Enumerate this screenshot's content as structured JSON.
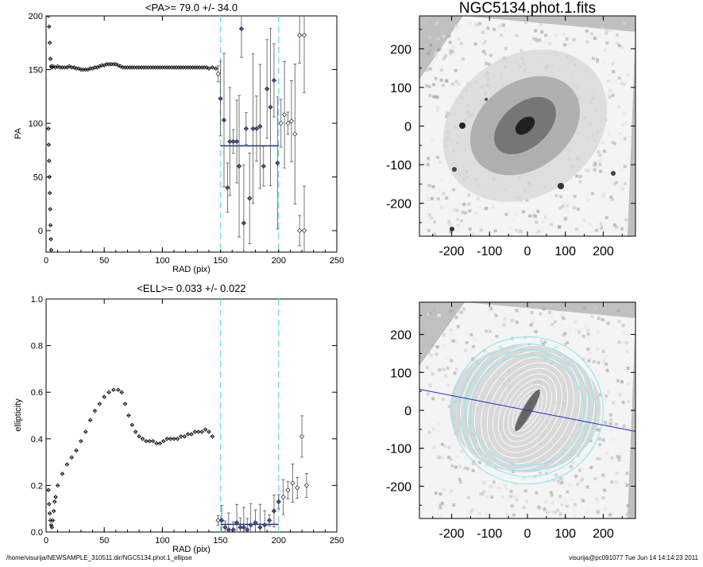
{
  "footer": {
    "path": "/home/visurija/NEWSAMPLE_310511.dir/NGC5134.phot.1_ellipse",
    "user_time": "visurija@pc091077  Tue Jun 14 14:14:23 2011"
  },
  "colors": {
    "inner": "#000000",
    "fit_region": "#4a4ab0",
    "fit_line": "#1a2aa8",
    "guide": "#7fdde8",
    "image_bg": "#c0c0c0",
    "ellipse": "#8fe8f0",
    "pa_line": "#2030c0"
  },
  "chart_data": [
    {
      "type": "scatter",
      "title": "<PA>=  79.0 +/-  34.0",
      "xlabel": "RAD (pix)",
      "ylabel": "PA",
      "xlim": [
        0,
        250
      ],
      "ylim": [
        -20,
        200
      ],
      "xticks": [
        "0",
        "50",
        "100",
        "150",
        "200",
        "250"
      ],
      "yticks": [
        "0",
        "50",
        "100",
        "150",
        "200"
      ],
      "fit_window": [
        150,
        200
      ],
      "mean_value": 79.0,
      "series": [
        {
          "points": [
            [
              2.0,
              200.0
            ],
            [
              2.6,
              190.0
            ],
            [
              3.2,
              175.0
            ],
            [
              3.8,
              160.0
            ],
            [
              4.4,
              153.0
            ],
            [
              5,
              152
            ],
            [
              6,
              153
            ],
            [
              8,
              152
            ],
            [
              10,
              153
            ],
            [
              12,
              152
            ],
            [
              14,
              152
            ],
            [
              16,
              152
            ],
            [
              18,
              152
            ],
            [
              20,
              153
            ],
            [
              22,
              152
            ],
            [
              24,
              152
            ],
            [
              26,
              151
            ],
            [
              28,
              151
            ],
            [
              30,
              150
            ],
            [
              32,
              150
            ],
            [
              34,
              150
            ],
            [
              36,
              150
            ],
            [
              38,
              151
            ],
            [
              40,
              151
            ],
            [
              42,
              152
            ],
            [
              44,
              152
            ],
            [
              46,
              153
            ],
            [
              48,
              154
            ],
            [
              50,
              154
            ],
            [
              52,
              155
            ],
            [
              54,
              155
            ],
            [
              56,
              155
            ],
            [
              58,
              155
            ],
            [
              60,
              155
            ],
            [
              62,
              154
            ],
            [
              64,
              153
            ],
            [
              66,
              152
            ],
            [
              68,
              152
            ],
            [
              70,
              152
            ],
            [
              72,
              152
            ],
            [
              74,
              152
            ],
            [
              76,
              152
            ],
            [
              78,
              152
            ],
            [
              80,
              152
            ],
            [
              82,
              152
            ],
            [
              84,
              152
            ],
            [
              86,
              152
            ],
            [
              88,
              152
            ],
            [
              90,
              152
            ],
            [
              92,
              152
            ],
            [
              94,
              152
            ],
            [
              96,
              152
            ],
            [
              98,
              152
            ],
            [
              100,
              152
            ],
            [
              102,
              152
            ],
            [
              104,
              152
            ],
            [
              106,
              152
            ],
            [
              108,
              152
            ],
            [
              110,
              152
            ],
            [
              112,
              152
            ],
            [
              114,
              152
            ],
            [
              116,
              152
            ],
            [
              118,
              152
            ],
            [
              120,
              152
            ],
            [
              122,
              152
            ],
            [
              124,
              152
            ],
            [
              126,
              152
            ],
            [
              128,
              152
            ],
            [
              130,
              152
            ],
            [
              132,
              152
            ],
            [
              134,
              152
            ],
            [
              136,
              152
            ],
            [
              138,
              152
            ],
            [
              140,
              151
            ],
            [
              143,
              152
            ],
            [
              146,
              151
            ],
            [
              2.0,
              95.0
            ],
            [
              2.3,
              80.0
            ],
            [
              2.6,
              65.0
            ],
            [
              2.9,
              50.0
            ],
            [
              3.2,
              35.0
            ],
            [
              3.5,
              20.0
            ],
            [
              3.8,
              5.0
            ],
            [
              4.1,
              -8.0
            ],
            [
              4.4,
              -18.0
            ]
          ]
        },
        {
          "points": [
            [
              148,
              146
            ],
            [
              150,
              123
            ],
            [
              153,
              103
            ],
            [
              156,
              40
            ],
            [
              158,
              83
            ],
            [
              161,
              83
            ],
            [
              164,
              83
            ],
            [
              166,
              60
            ],
            [
              168,
              188
            ],
            [
              170,
              7
            ],
            [
              172,
              95
            ],
            [
              175,
              30
            ],
            [
              178,
              95
            ],
            [
              181,
              95
            ],
            [
              184,
              97
            ],
            [
              187,
              60
            ],
            [
              190,
              132
            ],
            [
              193,
              115
            ],
            [
              196,
              140
            ],
            [
              199,
              63
            ],
            [
              202,
              100
            ],
            [
              205,
              108
            ],
            [
              208,
              100
            ],
            [
              211,
              102
            ],
            [
              214,
              90
            ],
            [
              218,
              182
            ],
            [
              222,
              182
            ],
            [
              218,
              0
            ],
            [
              222,
              0
            ]
          ]
        }
      ]
    },
    {
      "type": "scatter",
      "title": "<ELL>= 0.033 +/-  0.022",
      "xlabel": "RAD (pix)",
      "ylabel": "ellipticity",
      "xlim": [
        0,
        250
      ],
      "ylim": [
        0,
        1
      ],
      "xticks": [
        "0",
        "50",
        "100",
        "150",
        "200",
        "250"
      ],
      "yticks": [
        "0.0",
        "0.2",
        "0.4",
        "0.6",
        "0.8",
        "1.0"
      ],
      "fit_window": [
        150,
        200
      ],
      "mean_value": 0.033,
      "series": [
        {
          "points": [
            [
              2.0,
              0.18
            ],
            [
              2.6,
              0.12
            ],
            [
              3.2,
              0.08
            ],
            [
              3.8,
              0.05
            ],
            [
              4.4,
              0.03
            ],
            [
              5.0,
              0.02
            ],
            [
              5.8,
              0.05
            ],
            [
              6.6,
              0.09
            ],
            [
              7.4,
              0.13
            ],
            [
              8.2,
              0.15
            ],
            [
              10,
              0.2
            ],
            [
              14,
              0.25
            ],
            [
              18,
              0.29
            ],
            [
              22,
              0.32
            ],
            [
              26,
              0.35
            ],
            [
              30,
              0.39
            ],
            [
              34,
              0.43
            ],
            [
              38,
              0.48
            ],
            [
              42,
              0.52
            ],
            [
              46,
              0.55
            ],
            [
              50,
              0.58
            ],
            [
              54,
              0.6
            ],
            [
              58,
              0.61
            ],
            [
              62,
              0.61
            ],
            [
              65,
              0.6
            ],
            [
              68,
              0.55
            ],
            [
              71,
              0.5
            ],
            [
              74,
              0.46
            ],
            [
              77,
              0.43
            ],
            [
              80,
              0.41
            ],
            [
              83,
              0.4
            ],
            [
              86,
              0.39
            ],
            [
              89,
              0.39
            ],
            [
              92,
              0.39
            ],
            [
              95,
              0.38
            ],
            [
              98,
              0.38
            ],
            [
              101,
              0.39
            ],
            [
              104,
              0.4
            ],
            [
              107,
              0.4
            ],
            [
              110,
              0.4
            ],
            [
              113,
              0.4
            ],
            [
              116,
              0.41
            ],
            [
              119,
              0.41
            ],
            [
              122,
              0.42
            ],
            [
              125,
              0.42
            ],
            [
              128,
              0.43
            ],
            [
              131,
              0.43
            ],
            [
              134,
              0.43
            ],
            [
              137,
              0.44
            ],
            [
              140,
              0.43
            ],
            [
              143,
              0.41
            ]
          ]
        },
        {
          "points": [
            [
              148,
              0.05
            ],
            [
              151,
              0.05
            ],
            [
              154,
              0.02
            ],
            [
              157,
              0.01
            ],
            [
              161,
              0.01
            ],
            [
              164,
              0.04
            ],
            [
              167,
              0.02
            ],
            [
              170,
              0.02
            ],
            [
              173,
              0.01
            ],
            [
              176,
              0.03
            ],
            [
              180,
              0.04
            ],
            [
              184,
              0.02
            ],
            [
              188,
              0.03
            ],
            [
              192,
              0.05
            ],
            [
              196,
              0.09
            ],
            [
              200,
              0.13
            ],
            [
              204,
              0.15
            ],
            [
              208,
              0.18
            ],
            [
              212,
              0.21
            ],
            [
              216,
              0.19
            ],
            [
              220,
              0.41
            ],
            [
              224,
              0.2
            ]
          ]
        }
      ]
    },
    {
      "type": "heatmap",
      "title": "NGC5134.phot.1.fits",
      "xlim": [
        -285,
        285
      ],
      "ylim": [
        -285,
        285
      ],
      "xticks": [
        "-200",
        "-100",
        "0",
        "100",
        "200"
      ],
      "yticks": [
        "200",
        "100",
        "0",
        "-100",
        "-200"
      ]
    },
    {
      "type": "heatmap",
      "title": "",
      "xlim": [
        -285,
        285
      ],
      "ylim": [
        -285,
        285
      ],
      "xticks": [
        "-200",
        "-100",
        "0",
        "100",
        "200"
      ],
      "yticks": [
        "200",
        "100",
        "0",
        "-100",
        "-200"
      ],
      "pa_line_deg": 79.0,
      "ellipse_semi_major": [
        150,
        165,
        180,
        200
      ]
    }
  ]
}
